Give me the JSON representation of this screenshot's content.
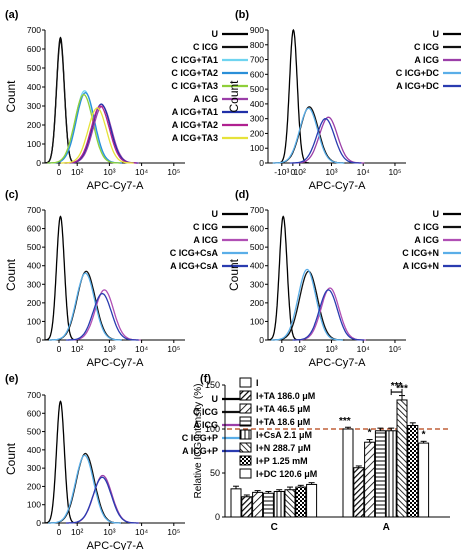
{
  "chart_data": [
    {
      "panel": "(a)",
      "type": "area",
      "xlabel": "APC-Cy7-A",
      "ylabel": "Count",
      "ylim": [
        0,
        700
      ],
      "yticks": [
        0,
        100,
        200,
        300,
        400,
        500,
        600,
        700
      ],
      "xscale": "log",
      "xticks": [
        "0",
        "10²",
        "10³",
        "10⁴",
        "10⁵"
      ],
      "legend_position": "right",
      "series": [
        {
          "name": "U",
          "color": "#000000",
          "peak_x": 8,
          "peak_y": 660
        },
        {
          "name": "C ICG",
          "color": "#111111",
          "peak_x": 8,
          "peak_y": 645
        },
        {
          "name": "C ICG+TA1",
          "color": "#6fd4f0",
          "peak_x": 170,
          "peak_y": 380
        },
        {
          "name": "C ICG+TA2",
          "color": "#2a8fd8",
          "peak_x": 180,
          "peak_y": 370
        },
        {
          "name": "C ICG+TA3",
          "color": "#8fcf3a",
          "peak_x": 160,
          "peak_y": 360
        },
        {
          "name": "A ICG",
          "color": "#9b3ea8",
          "peak_x": 600,
          "peak_y": 300
        },
        {
          "name": "A ICG+TA1",
          "color": "#2030a8",
          "peak_x": 560,
          "peak_y": 310
        },
        {
          "name": "A ICG+TA2",
          "color": "#b02090",
          "peak_x": 520,
          "peak_y": 300
        },
        {
          "name": "A ICG+TA3",
          "color": "#e6e23a",
          "peak_x": 420,
          "peak_y": 290
        }
      ]
    },
    {
      "panel": "(b)",
      "type": "area",
      "xlabel": "APC-Cy7-A",
      "ylabel": "Count",
      "ylim": [
        0,
        900
      ],
      "yticks": [
        0,
        100,
        200,
        300,
        400,
        500,
        600,
        700,
        800,
        900
      ],
      "xscale": "log",
      "xticks": [
        "-10³",
        "0",
        "10²",
        "10³",
        "10⁴",
        "10⁵"
      ],
      "legend_position": "right",
      "series": [
        {
          "name": "U",
          "color": "#000000",
          "peak_x": 8,
          "peak_y": 900
        },
        {
          "name": "C ICG",
          "color": "#111111",
          "peak_x": 200,
          "peak_y": 380
        },
        {
          "name": "A ICG",
          "color": "#9b3ea8",
          "peak_x": 800,
          "peak_y": 310
        },
        {
          "name": "C ICG+DC",
          "color": "#5aaee8",
          "peak_x": 190,
          "peak_y": 370
        },
        {
          "name": "A ICG+DC",
          "color": "#2a3cb0",
          "peak_x": 650,
          "peak_y": 300
        }
      ]
    },
    {
      "panel": "(c)",
      "type": "area",
      "xlabel": "APC-Cy7-A",
      "ylabel": "Count",
      "ylim": [
        0,
        700
      ],
      "yticks": [
        0,
        100,
        200,
        300,
        400,
        500,
        600,
        700
      ],
      "xscale": "log",
      "xticks": [
        "0",
        "10²",
        "10³",
        "10⁴",
        "10⁵"
      ],
      "legend_position": "right",
      "series": [
        {
          "name": "U",
          "color": "#000000",
          "peak_x": 8,
          "peak_y": 665
        },
        {
          "name": "C ICG",
          "color": "#111111",
          "peak_x": 190,
          "peak_y": 370
        },
        {
          "name": "A ICG",
          "color": "#b04fb4",
          "peak_x": 700,
          "peak_y": 270
        },
        {
          "name": "C ICG+CsA",
          "color": "#5aaee8",
          "peak_x": 180,
          "peak_y": 360
        },
        {
          "name": "A ICG+CsA",
          "color": "#2a3cb0",
          "peak_x": 600,
          "peak_y": 250
        }
      ]
    },
    {
      "panel": "(d)",
      "type": "area",
      "xlabel": "APC-Cy7-A",
      "ylabel": "Count",
      "ylim": [
        0,
        700
      ],
      "yticks": [
        0,
        100,
        200,
        300,
        400,
        500,
        600,
        700
      ],
      "xscale": "log",
      "xticks": [
        "0",
        "10²",
        "10³",
        "10⁴",
        "10⁵"
      ],
      "legend_position": "right",
      "series": [
        {
          "name": "U",
          "color": "#000000",
          "peak_x": 8,
          "peak_y": 665
        },
        {
          "name": "C ICG",
          "color": "#111111",
          "peak_x": 190,
          "peak_y": 370
        },
        {
          "name": "A ICG",
          "color": "#b04fb4",
          "peak_x": 900,
          "peak_y": 280
        },
        {
          "name": "C ICG+N",
          "color": "#5aaee8",
          "peak_x": 170,
          "peak_y": 380
        },
        {
          "name": "A ICG+N",
          "color": "#2a3cb0",
          "peak_x": 800,
          "peak_y": 270
        }
      ]
    },
    {
      "panel": "(e)",
      "type": "area",
      "xlabel": "APC-Cy7-A",
      "ylabel": "Count",
      "ylim": [
        0,
        700
      ],
      "yticks": [
        0,
        100,
        200,
        300,
        400,
        500,
        600,
        700
      ],
      "xscale": "log",
      "xticks": [
        "0",
        "10²",
        "10³",
        "10⁴",
        "10⁵"
      ],
      "legend_position": "right",
      "series": [
        {
          "name": "U",
          "color": "#000000",
          "peak_x": 8,
          "peak_y": 665
        },
        {
          "name": "C ICG",
          "color": "#111111",
          "peak_x": 180,
          "peak_y": 380
        },
        {
          "name": "A ICG",
          "color": "#9b3ea8",
          "peak_x": 620,
          "peak_y": 260
        },
        {
          "name": "C ICG+P",
          "color": "#5aaee8",
          "peak_x": 170,
          "peak_y": 370
        },
        {
          "name": "A ICG+P",
          "color": "#2a3cb0",
          "peak_x": 600,
          "peak_y": 250
        }
      ]
    },
    {
      "panel": "(f)",
      "type": "bar",
      "ylabel": "Relative ICG Intensity (%)",
      "ylim": [
        0,
        150
      ],
      "yticks": [
        0,
        50,
        100,
        150
      ],
      "categories": [
        "C",
        "A"
      ],
      "reference_line": 100,
      "reference_color": "#c0603a",
      "legend_position": "top",
      "series": [
        {
          "name": "I",
          "pattern": "open",
          "values": [
            32,
            100
          ],
          "errors": [
            3,
            2
          ]
        },
        {
          "name": "I+TA 186.0 μM",
          "pattern": "hatch-dense",
          "values": [
            23,
            56
          ],
          "errors": [
            2,
            2
          ]
        },
        {
          "name": "I+TA 46.5  μM",
          "pattern": "hatch",
          "values": [
            28,
            85
          ],
          "errors": [
            2,
            3
          ]
        },
        {
          "name": "I+TA 18.6  μM",
          "pattern": "hlines",
          "values": [
            27,
            98
          ],
          "errors": [
            2,
            3
          ]
        },
        {
          "name": "I+CsA 2.1  μM",
          "pattern": "vlines",
          "values": [
            29,
            98
          ],
          "errors": [
            2,
            3
          ]
        },
        {
          "name": "I+N 288.7  μM",
          "pattern": "diag-light",
          "values": [
            31,
            133
          ],
          "errors": [
            3,
            5
          ]
        },
        {
          "name": "I+P 1.25 mM",
          "pattern": "checker",
          "values": [
            34,
            104
          ],
          "errors": [
            2,
            3
          ]
        },
        {
          "name": "I+DC 120.6 μM",
          "pattern": "open",
          "values": [
            37,
            84
          ],
          "errors": [
            2,
            2
          ]
        }
      ],
      "annotations": [
        {
          "text": "***",
          "category": "A",
          "series": 1
        },
        {
          "text": "*",
          "category": "A",
          "series": 2
        },
        {
          "text": "***",
          "category": "A",
          "series": 5
        },
        {
          "text": "***",
          "category": "A",
          "bracket": [
            4,
            5
          ]
        },
        {
          "text": "*",
          "category": "A",
          "series": 7
        }
      ]
    }
  ]
}
